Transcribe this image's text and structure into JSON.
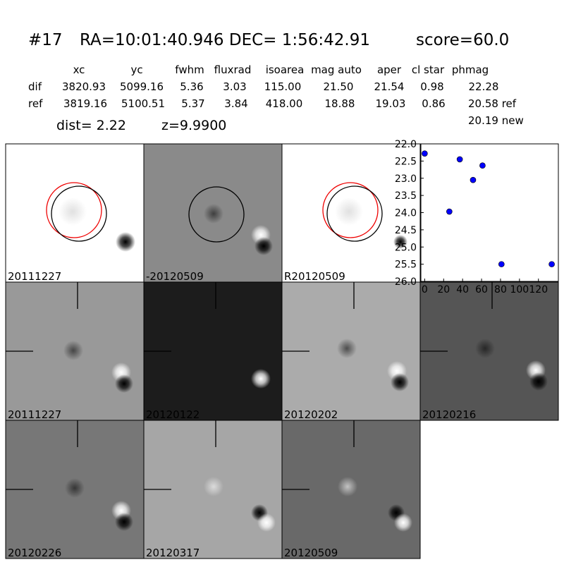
{
  "header": {
    "id": "#17",
    "coords": "RA=10:01:40.946 DEC= 1:56:42.91",
    "score": "score=60.0"
  },
  "table": {
    "columns": [
      "xc",
      "yc",
      "fwhm",
      "fluxrad",
      "isoarea",
      "mag auto",
      "aper",
      "cl star",
      "phmag"
    ],
    "rows": [
      [
        "dif",
        "3820.93",
        "5099.16",
        "5.36",
        "3.03",
        "115.00",
        "21.50",
        "21.54",
        "0.98",
        "22.28"
      ],
      [
        "ref",
        "3819.16",
        "5100.51",
        "5.37",
        "3.84",
        "418.00",
        "18.88",
        "19.03",
        "0.86",
        "20.58 ref"
      ]
    ],
    "extra": "20.19 new"
  },
  "dist": "dist=  2.22",
  "z": "z=9.9900",
  "panels": [
    "20111227",
    "-20120509",
    "R20120509",
    "20111227",
    "20120122",
    "20120202",
    "20120216",
    "20120226",
    "20120317",
    "20120509"
  ],
  "chart_data": {
    "type": "scatter",
    "color": "#0000ff",
    "x": [
      0,
      26,
      37,
      51,
      61,
      81,
      134
    ],
    "values": [
      22.28,
      23.97,
      22.45,
      23.05,
      22.63,
      25.5,
      25.5
    ],
    "xlim": [
      -4,
      141
    ],
    "ylim": [
      26.0,
      22.0
    ],
    "xticks": [
      0,
      20,
      40,
      60,
      80,
      100,
      120
    ],
    "yticks": [
      {
        "value": 22,
        "label": "22.0"
      },
      {
        "value": 22.5,
        "label": "22.5"
      },
      {
        "value": 23,
        "label": "23.0"
      },
      {
        "value": 23.5,
        "label": "23.5"
      },
      {
        "value": 24,
        "label": "24.0"
      },
      {
        "value": 24.5,
        "label": "24.5"
      },
      {
        "value": 25,
        "label": "25.0"
      },
      {
        "value": 25.5,
        "label": "25.5"
      },
      {
        "value": 26,
        "label": "26.0"
      }
    ]
  }
}
